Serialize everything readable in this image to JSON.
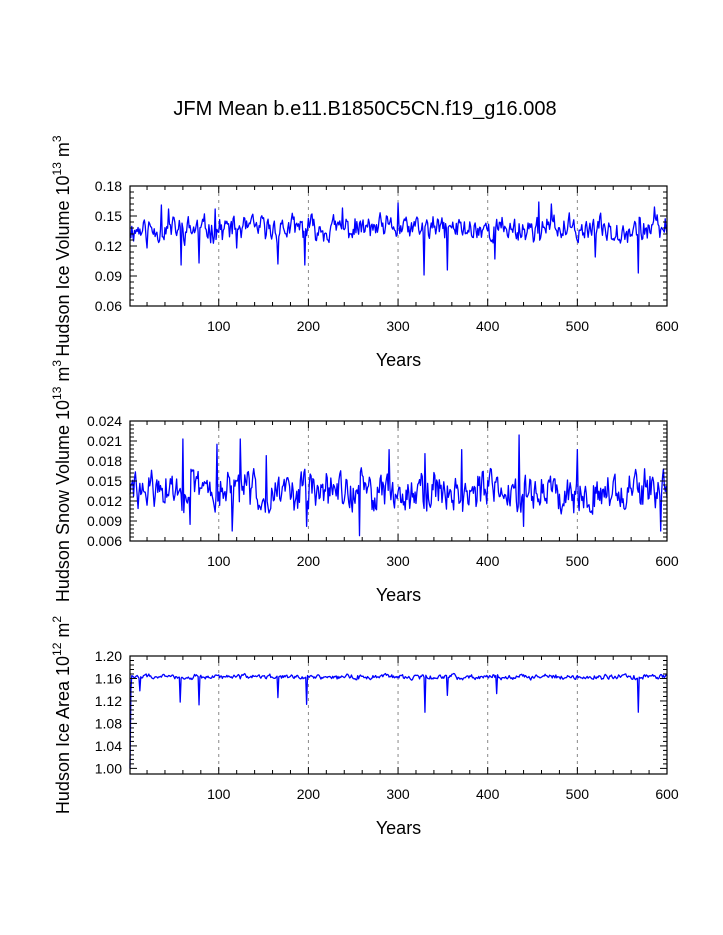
{
  "title": "JFM Mean b.e11.B1850C5CN.f19_g16.008",
  "series_color": "#0000ff",
  "chart_data": [
    {
      "type": "line",
      "xlabel": "Years",
      "ylabel": "Hudson Ice Volume 10",
      "ylabel_exp": "13",
      "ylabel_unit": " m",
      "ylabel_unit_exp": "3",
      "xlim": [
        1,
        600
      ],
      "ylim": [
        0.06,
        0.18
      ],
      "xticks": [
        100,
        200,
        300,
        400,
        500,
        600
      ],
      "xtick_labels": [
        "100",
        "200",
        "300",
        "400",
        "500",
        "600"
      ],
      "yticks": [
        0.06,
        0.09,
        0.12,
        0.15,
        0.18
      ],
      "ytick_labels": [
        "0.06",
        "0.09",
        "0.12",
        "0.15",
        "0.18"
      ],
      "grid": "vertical-dashed",
      "series": [
        {
          "name": "ice_volume",
          "mean": 0.137,
          "amp": 0.011,
          "seed": 11,
          "spikes": [
            [
              20,
              0.118
            ],
            [
              36,
              0.161
            ],
            [
              44,
              0.157
            ],
            [
              58,
              0.101
            ],
            [
              78,
              0.103
            ],
            [
              96,
              0.157
            ],
            [
              120,
              0.118
            ],
            [
              166,
              0.102
            ],
            [
              196,
              0.101
            ],
            [
              238,
              0.158
            ],
            [
              300,
              0.163
            ],
            [
              329,
              0.091
            ],
            [
              355,
              0.096
            ],
            [
              408,
              0.107
            ],
            [
              457,
              0.164
            ],
            [
              471,
              0.162
            ],
            [
              520,
              0.109
            ],
            [
              568,
              0.093
            ],
            [
              586,
              0.159
            ]
          ]
        }
      ]
    },
    {
      "type": "line",
      "xlabel": "Years",
      "ylabel": "Hudson Snow Volume 10",
      "ylabel_exp": "13",
      "ylabel_unit": " m",
      "ylabel_unit_exp": "3",
      "xlim": [
        1,
        600
      ],
      "ylim": [
        0.006,
        0.024
      ],
      "xticks": [
        100,
        200,
        300,
        400,
        500,
        600
      ],
      "xtick_labels": [
        "100",
        "200",
        "300",
        "400",
        "500",
        "600"
      ],
      "yticks": [
        0.006,
        0.009,
        0.012,
        0.015,
        0.018,
        0.021,
        0.024
      ],
      "ytick_labels": [
        "0.006",
        "0.009",
        "0.012",
        "0.015",
        "0.018",
        "0.021",
        "0.024"
      ],
      "grid": "vertical-dashed",
      "series": [
        {
          "name": "snow_volume",
          "mean": 0.0135,
          "amp": 0.0026,
          "seed": 29,
          "spikes": [
            [
              60,
              0.0213
            ],
            [
              68,
              0.0085
            ],
            [
              98,
              0.0205
            ],
            [
              115,
              0.0075
            ],
            [
              124,
              0.0213
            ],
            [
              153,
              0.0188
            ],
            [
              198,
              0.0082
            ],
            [
              257,
              0.0068
            ],
            [
              290,
              0.0197
            ],
            [
              330,
              0.0191
            ],
            [
              371,
              0.0197
            ],
            [
              435,
              0.0219
            ],
            [
              440,
              0.0082
            ],
            [
              500,
              0.0197
            ],
            [
              593,
              0.0075
            ],
            [
              596,
              0.0168
            ]
          ]
        }
      ]
    },
    {
      "type": "line",
      "xlabel": "Years",
      "ylabel": "Hudson Ice Area 10",
      "ylabel_exp": "12",
      "ylabel_unit": " m",
      "ylabel_unit_exp": "2",
      "xlim": [
        1,
        600
      ],
      "ylim": [
        0.99,
        1.2
      ],
      "xticks": [
        100,
        200,
        300,
        400,
        500,
        600
      ],
      "xtick_labels": [
        "100",
        "200",
        "300",
        "400",
        "500",
        "600"
      ],
      "yticks": [
        1.0,
        1.04,
        1.08,
        1.12,
        1.16,
        1.2
      ],
      "ytick_labels": [
        "1.00",
        "1.04",
        "1.08",
        "1.12",
        "1.16",
        "1.20"
      ],
      "grid": "vertical-dashed",
      "series": [
        {
          "name": "ice_area",
          "mean": 1.163,
          "amp": 0.004,
          "seed": 47,
          "start": [
            [
              1,
              1.0
            ],
            [
              2,
              1.14
            ],
            [
              3,
              1.165
            ]
          ],
          "spikes": [
            [
              12,
              1.138
            ],
            [
              57,
              1.118
            ],
            [
              78,
              1.113
            ],
            [
              166,
              1.126
            ],
            [
              198,
              1.114
            ],
            [
              330,
              1.1
            ],
            [
              355,
              1.13
            ],
            [
              410,
              1.133
            ],
            [
              568,
              1.1
            ]
          ]
        }
      ]
    }
  ]
}
